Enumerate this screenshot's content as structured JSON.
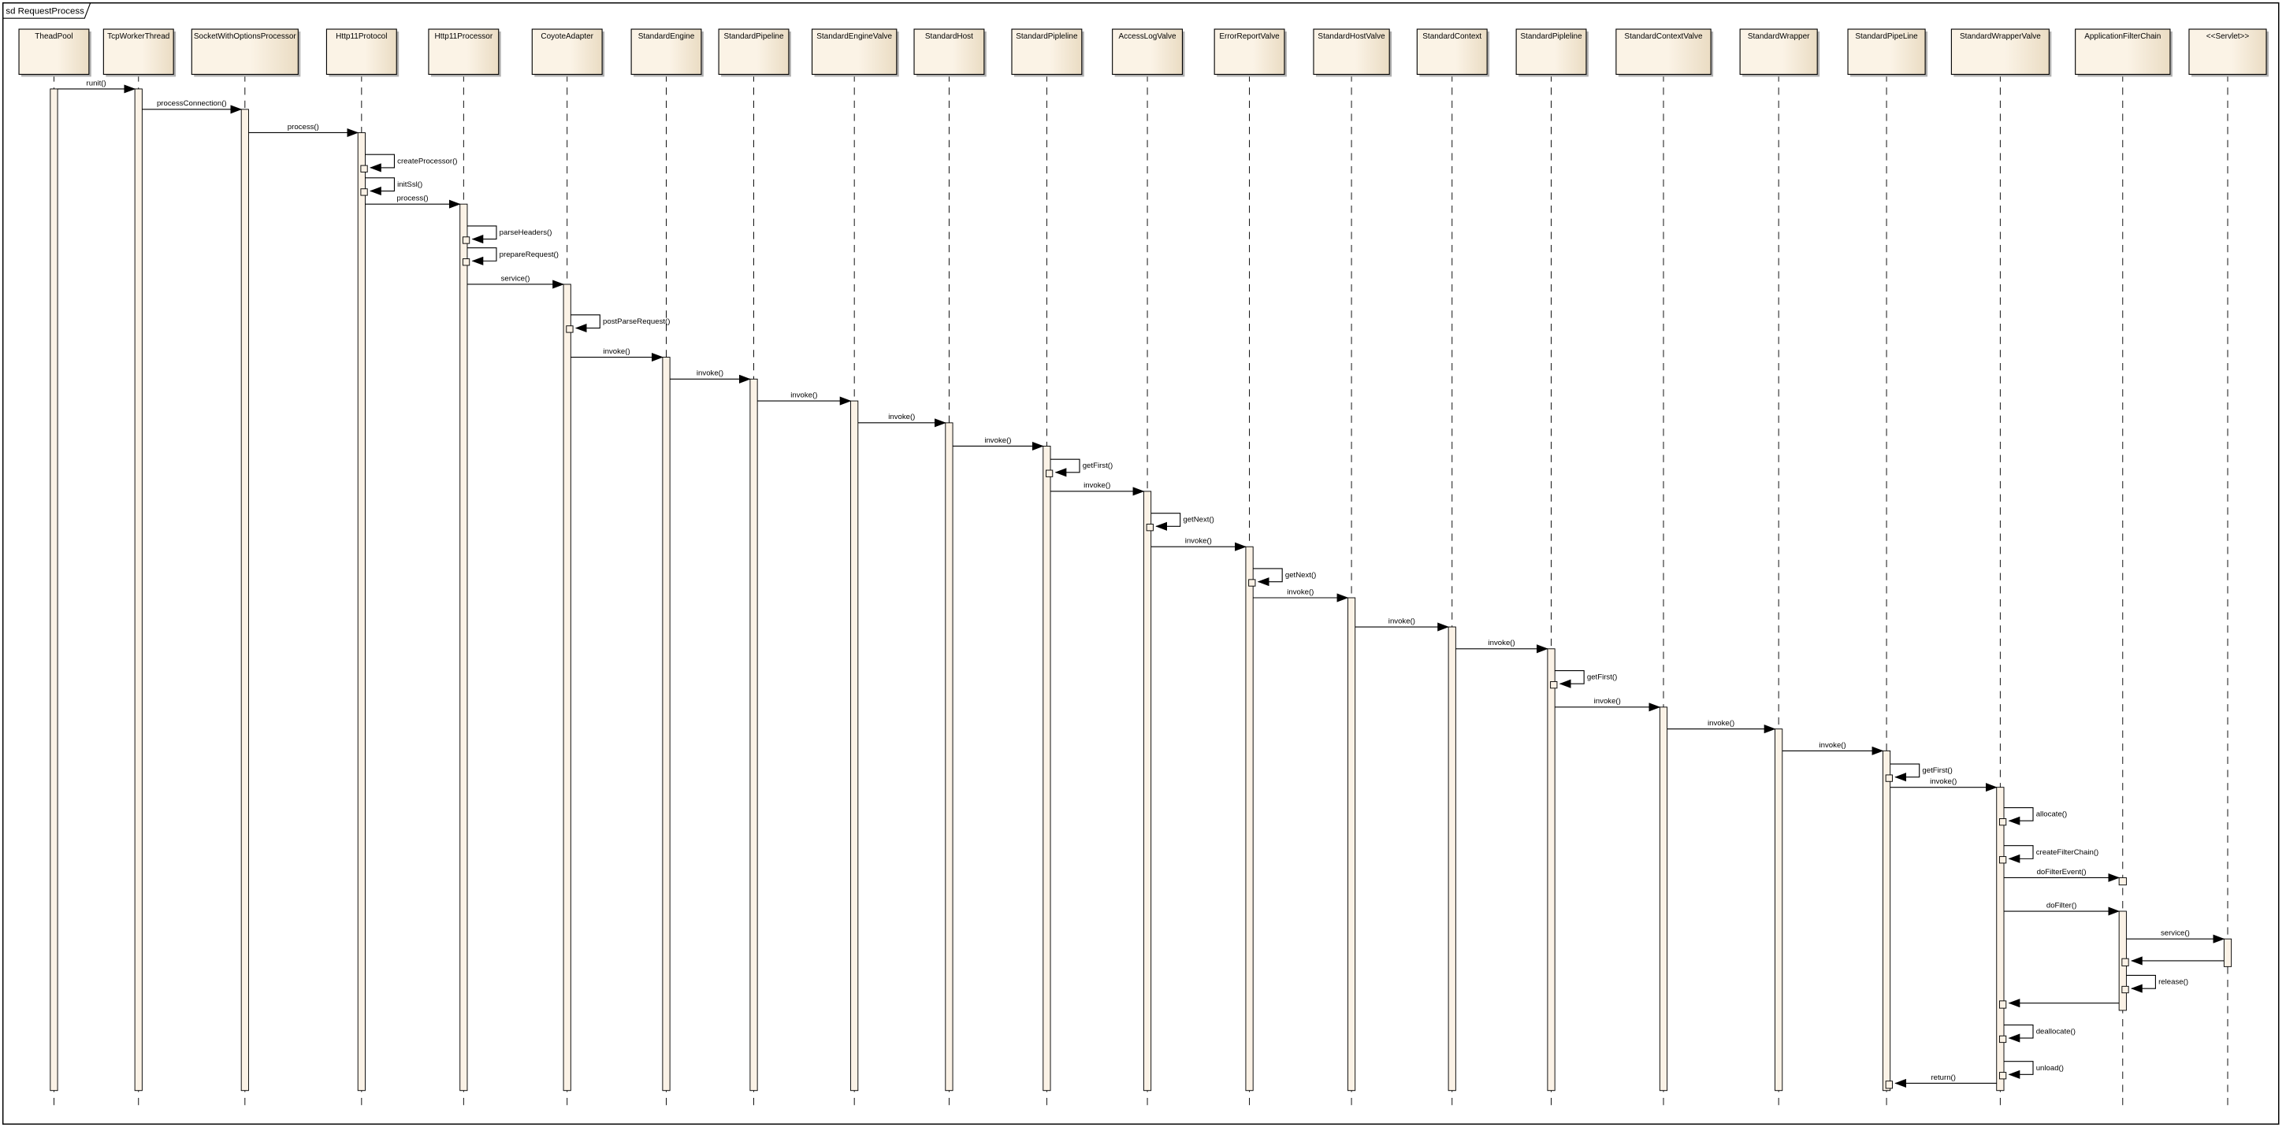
{
  "frame": {
    "title": "sd RequestProcess"
  },
  "colors": {
    "box_fill_light": "#fbf3e6",
    "box_fill_dark": "#eadcc3",
    "activation_fill": "#fbf2e6",
    "line": "#000000",
    "shadow": "#b0b0b0"
  },
  "participants": [
    "TheadPool",
    "TcpWorkerThread",
    "SocketWithOptionsProcessor",
    "Http11Protocol",
    "Http11Processor",
    "CoyoteAdapter",
    "StandardEngine",
    "StandardPipeline",
    "StandardEngineValve",
    "StandardHost",
    "StandardPipleline",
    "AccessLogValve",
    "ErrorReportValve",
    "StandardHostValve",
    "StandardContext",
    "StandardPipleline",
    "StandardContextValve",
    "StandardWrapper",
    "StandardPipeLine",
    "StandardWrapperValve",
    "ApplicationFilterChain",
    "<<Servlet>>"
  ],
  "messages": [
    {
      "from": 0,
      "to": 1,
      "label": "runit()"
    },
    {
      "from": 1,
      "to": 2,
      "label": "processConnection()"
    },
    {
      "from": 2,
      "to": 3,
      "label": "process()"
    },
    {
      "from": 3,
      "to": 3,
      "label": "createProcessor()"
    },
    {
      "from": 3,
      "to": 3,
      "label": "initSsl()"
    },
    {
      "from": 3,
      "to": 4,
      "label": "process()"
    },
    {
      "from": 4,
      "to": 4,
      "label": "parseHeaders()"
    },
    {
      "from": 4,
      "to": 4,
      "label": "prepareRequest()"
    },
    {
      "from": 4,
      "to": 5,
      "label": "service()"
    },
    {
      "from": 5,
      "to": 5,
      "label": "postParseRequest()"
    },
    {
      "from": 5,
      "to": 6,
      "label": "invoke()"
    },
    {
      "from": 6,
      "to": 7,
      "label": "invoke()"
    },
    {
      "from": 7,
      "to": 8,
      "label": "invoke()"
    },
    {
      "from": 8,
      "to": 9,
      "label": "invoke()"
    },
    {
      "from": 9,
      "to": 10,
      "label": "invoke()"
    },
    {
      "from": 10,
      "to": 10,
      "label": "getFirst()"
    },
    {
      "from": 10,
      "to": 11,
      "label": "invoke()"
    },
    {
      "from": 11,
      "to": 11,
      "label": "getNext()"
    },
    {
      "from": 11,
      "to": 12,
      "label": "invoke()"
    },
    {
      "from": 12,
      "to": 12,
      "label": "getNext()"
    },
    {
      "from": 12,
      "to": 13,
      "label": "invoke()"
    },
    {
      "from": 13,
      "to": 14,
      "label": "invoke()"
    },
    {
      "from": 14,
      "to": 15,
      "label": "invoke()"
    },
    {
      "from": 15,
      "to": 15,
      "label": "getFirst()"
    },
    {
      "from": 15,
      "to": 16,
      "label": "invoke()"
    },
    {
      "from": 16,
      "to": 17,
      "label": "invoke()"
    },
    {
      "from": 17,
      "to": 18,
      "label": "invoke()"
    },
    {
      "from": 18,
      "to": 18,
      "label": "getFirst()"
    },
    {
      "from": 18,
      "to": 19,
      "label": "invoke()"
    },
    {
      "from": 19,
      "to": 19,
      "label": "allocate()"
    },
    {
      "from": 19,
      "to": 19,
      "label": "createFilterChain()"
    },
    {
      "from": 19,
      "to": 20,
      "label": "doFilterEvent()"
    },
    {
      "from": 19,
      "to": 20,
      "label": "doFilter()"
    },
    {
      "from": 20,
      "to": 21,
      "label": "service()"
    },
    {
      "from": 21,
      "to": 20,
      "label": ""
    },
    {
      "from": 20,
      "to": 20,
      "label": "release()"
    },
    {
      "from": 20,
      "to": 19,
      "label": ""
    },
    {
      "from": 19,
      "to": 19,
      "label": "deallocate()"
    },
    {
      "from": 19,
      "to": 19,
      "label": "unload()"
    },
    {
      "from": 19,
      "to": 18,
      "label": "return()"
    }
  ]
}
